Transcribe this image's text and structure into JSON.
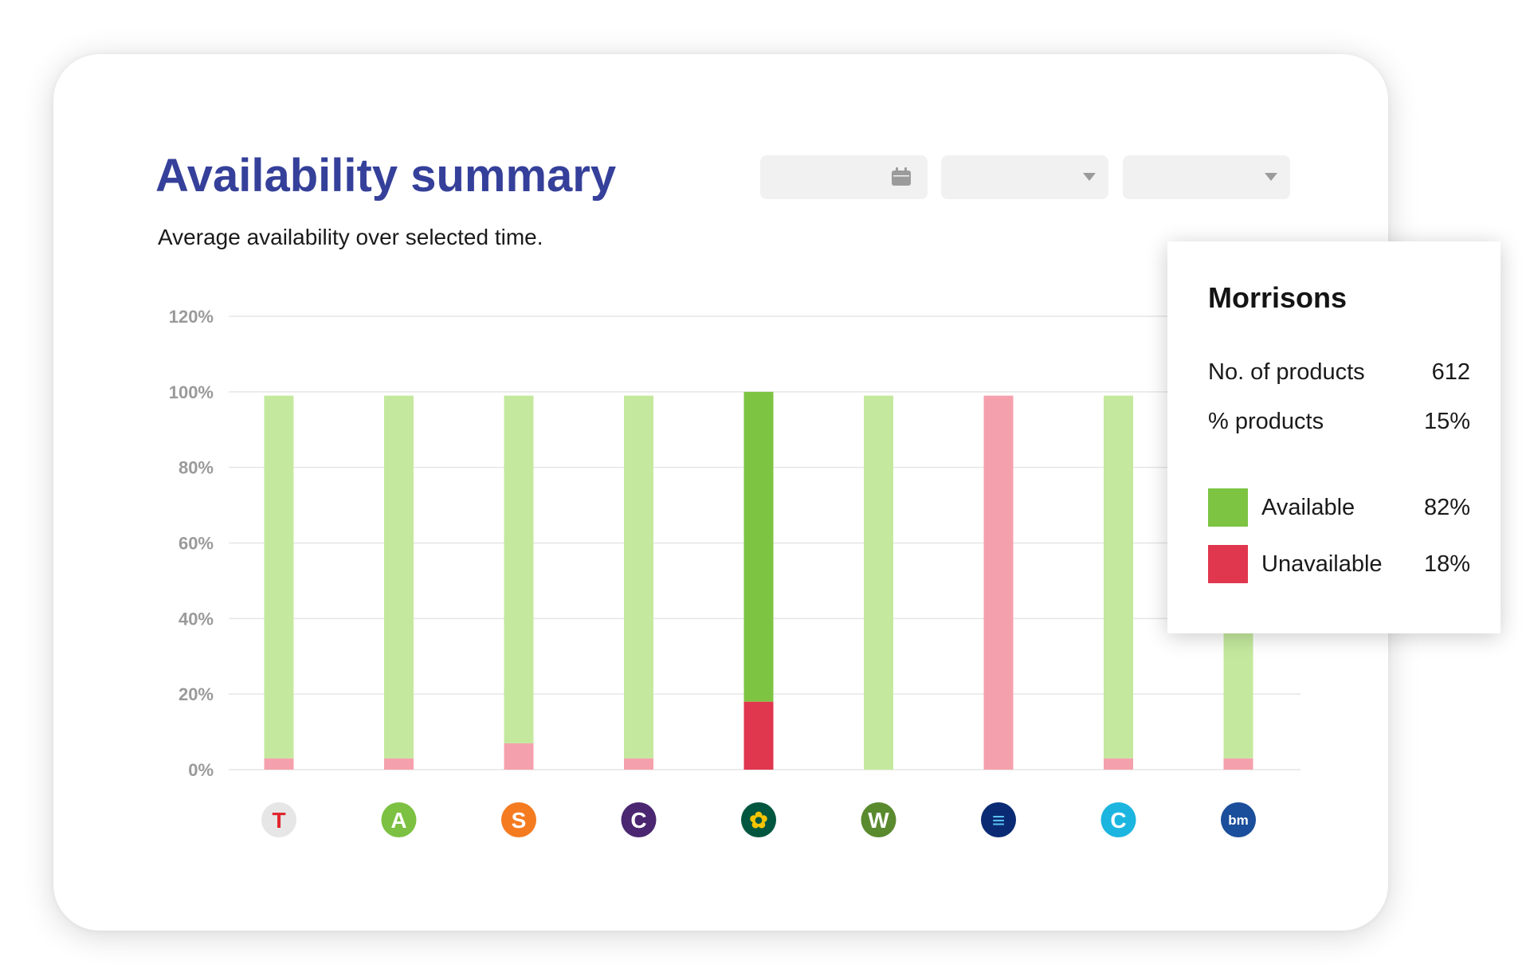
{
  "header": {
    "title": "Availability summary",
    "subtitle": "Average availability over selected time."
  },
  "controls": {
    "date_icon": "calendar-icon",
    "dropdown_icon": "chevron-down-icon"
  },
  "tooltip": {
    "title": "Morrisons",
    "rows": [
      {
        "label": "No. of products",
        "value": "612"
      },
      {
        "label": "% products",
        "value": "15%"
      }
    ],
    "legend": [
      {
        "label": "Available",
        "value": "82%",
        "color": "#7dc443"
      },
      {
        "label": "Unavailable",
        "value": "18%",
        "color": "#e0374e"
      }
    ]
  },
  "chart_data": {
    "type": "bar",
    "stacked": true,
    "categories": [
      "Tesco",
      "Asda",
      "Sainsbury's",
      "Co-op",
      "Morrisons",
      "Waitrose",
      "Aldi",
      "Ocado",
      "B&M"
    ],
    "category_logos": [
      {
        "icon": "tesco-logo-icon",
        "letter": "T",
        "bg": "#e6e6e6",
        "fg": "#e0262d"
      },
      {
        "icon": "asda-logo-icon",
        "letter": "A",
        "bg": "#7cc142",
        "fg": "#ffffff"
      },
      {
        "icon": "sainsburys-logo-icon",
        "letter": "S",
        "bg": "#f47b20",
        "fg": "#ffffff"
      },
      {
        "icon": "coop-logo-icon",
        "letter": "C",
        "bg": "#4a2770",
        "fg": "#ffffff"
      },
      {
        "icon": "morrisons-logo-icon",
        "letter": "✿",
        "bg": "#00563f",
        "fg": "#f5c400"
      },
      {
        "icon": "waitrose-logo-icon",
        "letter": "W",
        "bg": "#5a8a2e",
        "fg": "#ffffff"
      },
      {
        "icon": "aldi-logo-icon",
        "letter": "≡",
        "bg": "#0a2a74",
        "fg": "#5bc4f1"
      },
      {
        "icon": "ocado-logo-icon",
        "letter": "C",
        "bg": "#1cb5e0",
        "fg": "#ffffff"
      },
      {
        "icon": "bm-logo-icon",
        "letter": "bm",
        "bg": "#1b4e9b",
        "fg": "#ffffff"
      }
    ],
    "series": [
      {
        "name": "Unavailable",
        "values": [
          3,
          3,
          7,
          3,
          18,
          0,
          99,
          3,
          3
        ]
      },
      {
        "name": "Available",
        "values": [
          96,
          96,
          92,
          96,
          82,
          99,
          0,
          96,
          96
        ]
      }
    ],
    "highlight_index": 4,
    "colors": {
      "available": "#c4e99e",
      "unavailable": "#f5a1ad",
      "available_highlight": "#7dc443",
      "unavailable_highlight": "#e0374e",
      "grid": "#e6e6e6"
    },
    "y_ticks": [
      "0%",
      "20%",
      "40%",
      "60%",
      "80%",
      "100%",
      "120%"
    ],
    "y_tick_values": [
      0,
      20,
      40,
      60,
      80,
      100,
      120
    ],
    "ylim": [
      0,
      120
    ],
    "grid": true
  }
}
